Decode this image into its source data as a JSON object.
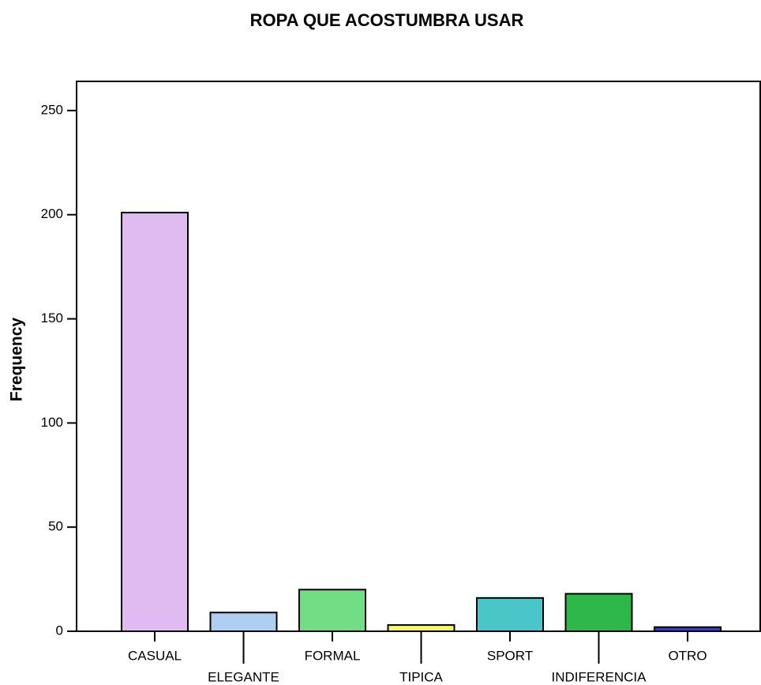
{
  "chart_data": {
    "type": "bar",
    "title": "ROPA QUE ACOSTUMBRA USAR",
    "ylabel": "Frequency",
    "categories": [
      "CASUAL",
      "ELEGANTE",
      "FORMAL",
      "TIPICA",
      "SPORT",
      "INDIFERENCIA",
      "OTRO"
    ],
    "values": [
      201,
      9,
      20,
      3,
      16,
      18,
      2
    ],
    "colors": [
      "#dfbbf2",
      "#b0cff0",
      "#72dd85",
      "#f5f572",
      "#4ac5c8",
      "#2eb84a",
      "#3a3ac8"
    ],
    "ylim": [
      0,
      264
    ],
    "yticks": [
      0,
      50,
      100,
      150,
      200,
      250
    ],
    "grid": false
  }
}
